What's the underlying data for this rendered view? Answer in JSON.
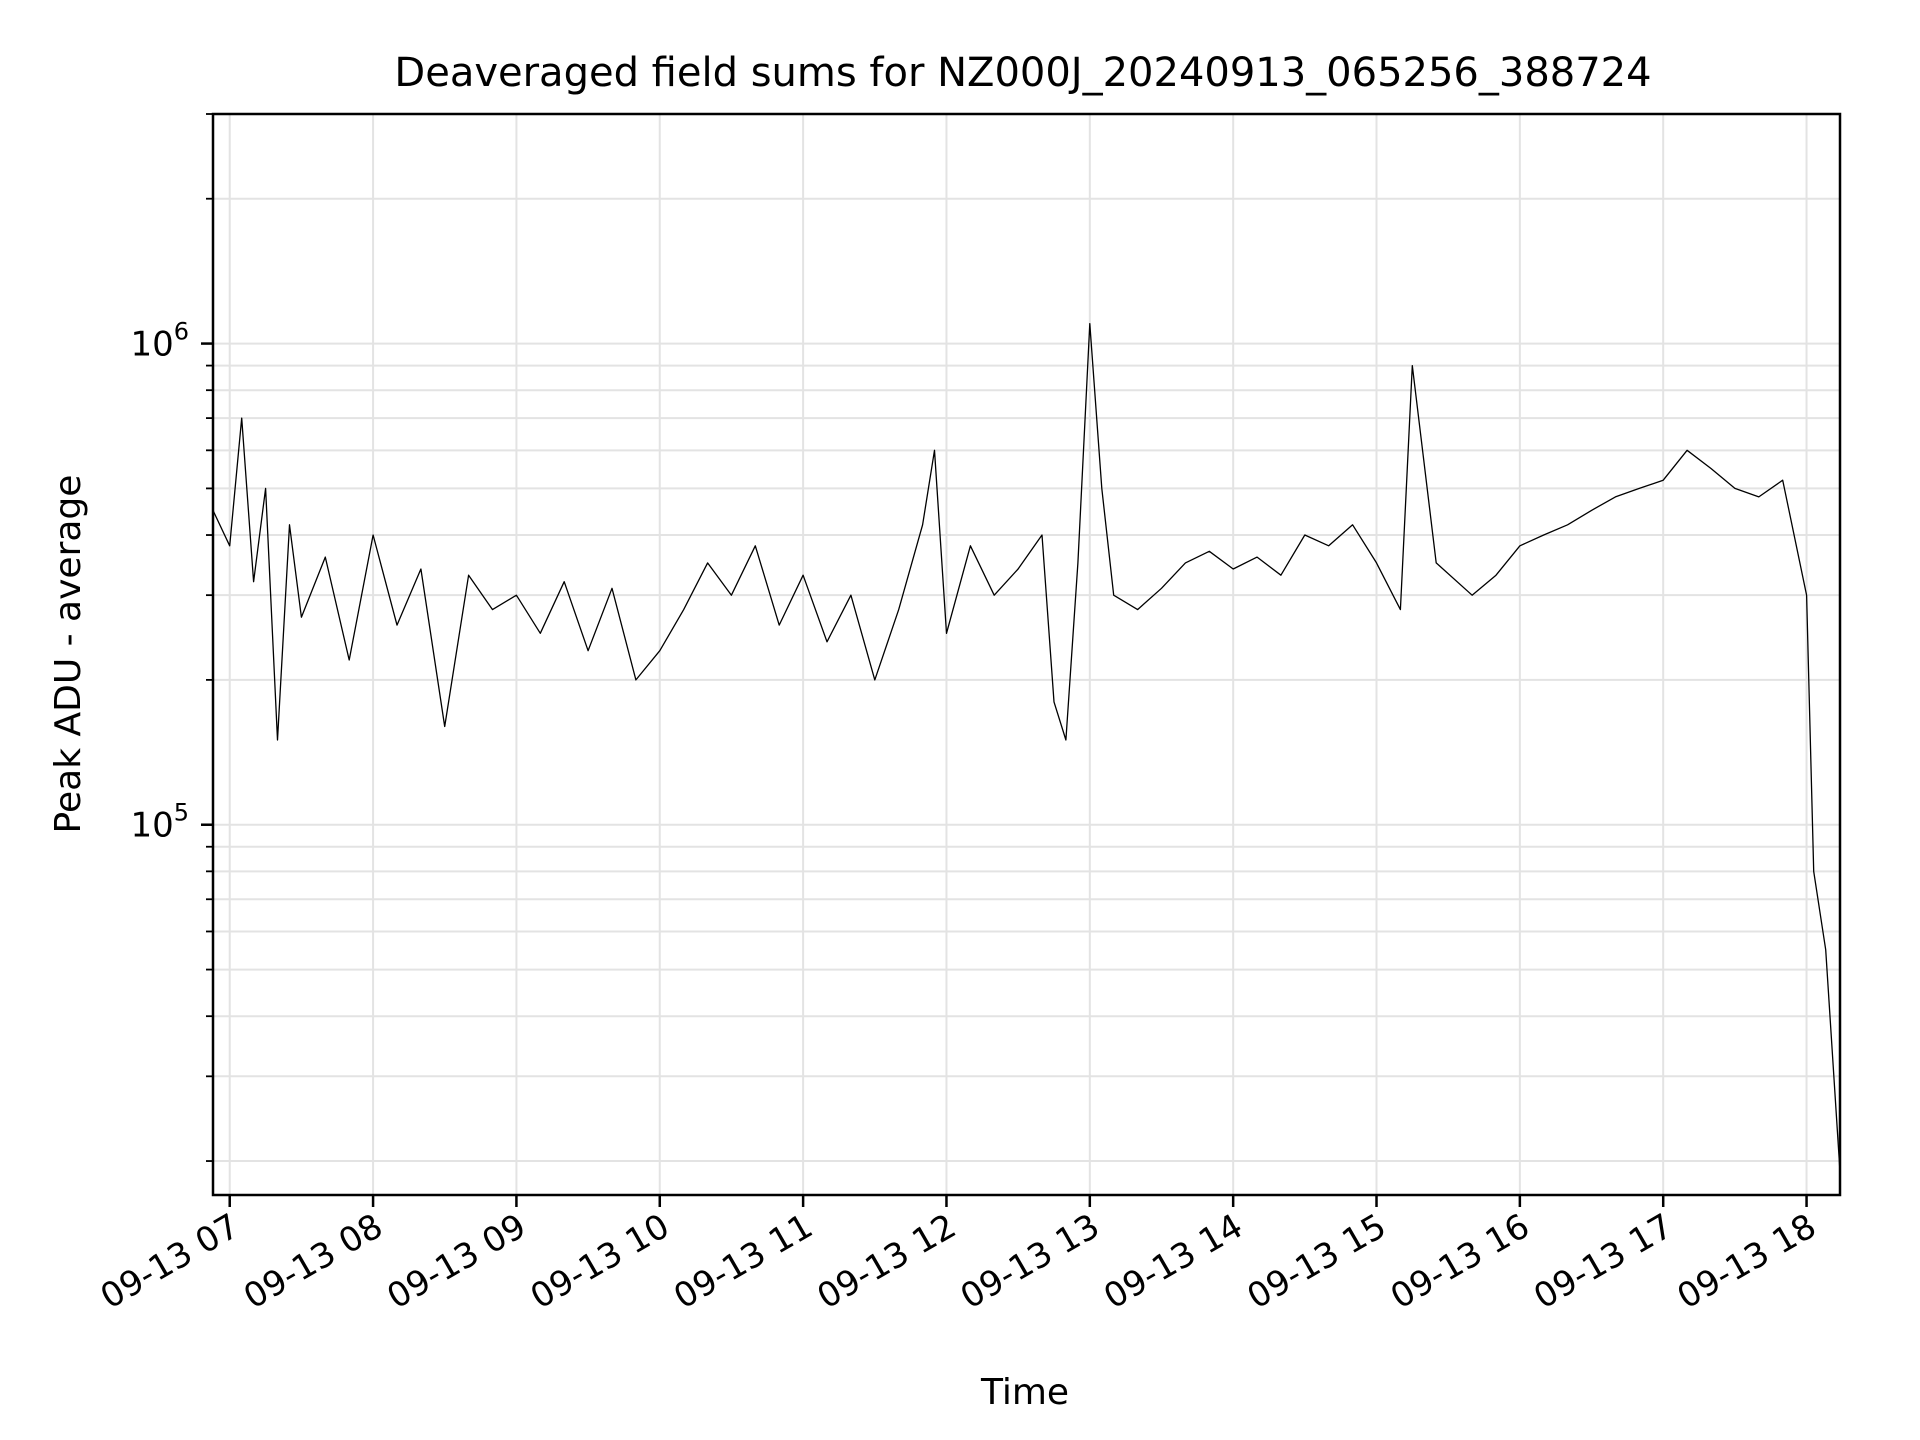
{
  "chart_data": {
    "type": "line",
    "title": "Deaveraged field sums for NZ000J_20240913_065256_388724",
    "xlabel": "Time",
    "ylabel": "Peak ADU - average",
    "y_scale": "log",
    "ylim": [
      17000,
      3000000
    ],
    "xlim": [
      "09-13 06:53",
      "09-13 18:14"
    ],
    "x_ticks": [
      "09-13 07",
      "09-13 08",
      "09-13 09",
      "09-13 10",
      "09-13 11",
      "09-13 12",
      "09-13 13",
      "09-13 14",
      "09-13 15",
      "09-13 16",
      "09-13 17",
      "09-13 18"
    ],
    "y_ticks": [
      {
        "value": 100000,
        "base": "10",
        "exp": "5"
      },
      {
        "value": 1000000,
        "base": "10",
        "exp": "6"
      }
    ],
    "grid": true,
    "line_color": "#000000",
    "series": [
      {
        "name": "",
        "points": [
          [
            "09-13 06:53",
            450000
          ],
          [
            "09-13 07:00",
            380000
          ],
          [
            "09-13 07:05",
            700000
          ],
          [
            "09-13 07:10",
            320000
          ],
          [
            "09-13 07:15",
            500000
          ],
          [
            "09-13 07:20",
            150000
          ],
          [
            "09-13 07:25",
            420000
          ],
          [
            "09-13 07:30",
            270000
          ],
          [
            "09-13 07:40",
            360000
          ],
          [
            "09-13 07:50",
            220000
          ],
          [
            "09-13 08:00",
            400000
          ],
          [
            "09-13 08:10",
            260000
          ],
          [
            "09-13 08:20",
            340000
          ],
          [
            "09-13 08:30",
            160000
          ],
          [
            "09-13 08:40",
            330000
          ],
          [
            "09-13 08:50",
            280000
          ],
          [
            "09-13 09:00",
            300000
          ],
          [
            "09-13 09:10",
            250000
          ],
          [
            "09-13 09:20",
            320000
          ],
          [
            "09-13 09:30",
            230000
          ],
          [
            "09-13 09:40",
            310000
          ],
          [
            "09-13 09:50",
            200000
          ],
          [
            "09-13 10:00",
            230000
          ],
          [
            "09-13 10:10",
            280000
          ],
          [
            "09-13 10:20",
            350000
          ],
          [
            "09-13 10:30",
            300000
          ],
          [
            "09-13 10:40",
            380000
          ],
          [
            "09-13 10:50",
            260000
          ],
          [
            "09-13 11:00",
            330000
          ],
          [
            "09-13 11:10",
            240000
          ],
          [
            "09-13 11:20",
            300000
          ],
          [
            "09-13 11:30",
            200000
          ],
          [
            "09-13 11:40",
            280000
          ],
          [
            "09-13 11:50",
            420000
          ],
          [
            "09-13 11:55",
            600000
          ],
          [
            "09-13 12:00",
            250000
          ],
          [
            "09-13 12:10",
            380000
          ],
          [
            "09-13 12:20",
            300000
          ],
          [
            "09-13 12:30",
            340000
          ],
          [
            "09-13 12:40",
            400000
          ],
          [
            "09-13 12:45",
            180000
          ],
          [
            "09-13 12:50",
            150000
          ],
          [
            "09-13 12:55",
            350000
          ],
          [
            "09-13 13:00",
            1100000
          ],
          [
            "09-13 13:05",
            500000
          ],
          [
            "09-13 13:10",
            300000
          ],
          [
            "09-13 13:20",
            280000
          ],
          [
            "09-13 13:30",
            310000
          ],
          [
            "09-13 13:40",
            350000
          ],
          [
            "09-13 13:50",
            370000
          ],
          [
            "09-13 14:00",
            340000
          ],
          [
            "09-13 14:10",
            360000
          ],
          [
            "09-13 14:20",
            330000
          ],
          [
            "09-13 14:30",
            400000
          ],
          [
            "09-13 14:40",
            380000
          ],
          [
            "09-13 14:50",
            420000
          ],
          [
            "09-13 15:00",
            350000
          ],
          [
            "09-13 15:10",
            280000
          ],
          [
            "09-13 15:15",
            900000
          ],
          [
            "09-13 15:25",
            350000
          ],
          [
            "09-13 15:40",
            300000
          ],
          [
            "09-13 15:50",
            330000
          ],
          [
            "09-13 16:00",
            380000
          ],
          [
            "09-13 16:10",
            400000
          ],
          [
            "09-13 16:20",
            420000
          ],
          [
            "09-13 16:30",
            450000
          ],
          [
            "09-13 16:40",
            480000
          ],
          [
            "09-13 16:50",
            500000
          ],
          [
            "09-13 17:00",
            520000
          ],
          [
            "09-13 17:10",
            600000
          ],
          [
            "09-13 17:20",
            550000
          ],
          [
            "09-13 17:30",
            500000
          ],
          [
            "09-13 17:40",
            480000
          ],
          [
            "09-13 17:50",
            520000
          ],
          [
            "09-13 18:00",
            300000
          ],
          [
            "09-13 18:03",
            80000
          ],
          [
            "09-13 18:08",
            55000
          ],
          [
            "09-13 18:14",
            19000
          ]
        ]
      }
    ]
  }
}
